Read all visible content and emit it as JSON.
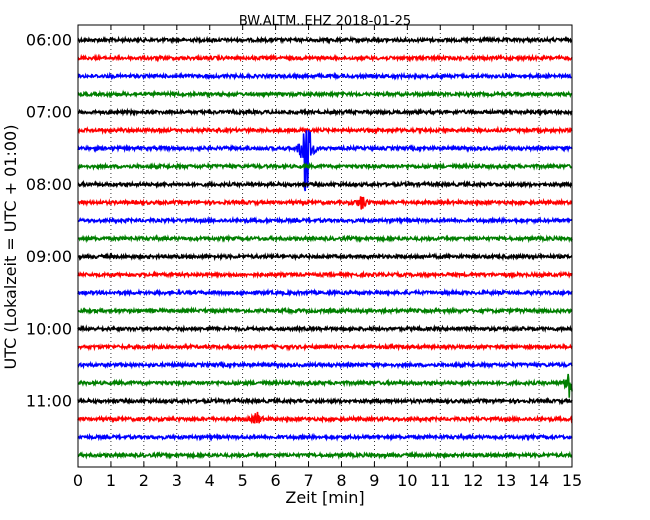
{
  "chart_data": {
    "type": "line",
    "title": "BW.ALTM..EHZ 2018-01-25",
    "xlabel": "Zeit  [min]",
    "ylabel": "UTC (Lokalzeit = UTC + 01:00)",
    "xlim": [
      0,
      15
    ],
    "x_ticks": [
      "0",
      "1",
      "2",
      "3",
      "4",
      "5",
      "6",
      "7",
      "8",
      "9",
      "10",
      "11",
      "12",
      "13",
      "14",
      "15"
    ],
    "y_tick_labels": [
      "06:00",
      "07:00",
      "08:00",
      "09:00",
      "10:00",
      "11:00"
    ],
    "grid": true,
    "series_colors": [
      "#000000",
      "#ff0000",
      "#0000ff",
      "#007f00"
    ],
    "traces": [
      {
        "start": "06:00",
        "color": "#000000"
      },
      {
        "start": "06:15",
        "color": "#ff0000"
      },
      {
        "start": "06:30",
        "color": "#0000ff"
      },
      {
        "start": "06:45",
        "color": "#007f00"
      },
      {
        "start": "07:00",
        "color": "#000000"
      },
      {
        "start": "07:15",
        "color": "#ff0000"
      },
      {
        "start": "07:30",
        "color": "#0000ff",
        "event_min": 6.9,
        "event_amp": 1.0
      },
      {
        "start": "07:45",
        "color": "#007f00"
      },
      {
        "start": "08:00",
        "color": "#000000"
      },
      {
        "start": "08:15",
        "color": "#ff0000",
        "event_min": 8.6,
        "event_amp": 0.12
      },
      {
        "start": "08:30",
        "color": "#0000ff"
      },
      {
        "start": "08:45",
        "color": "#007f00"
      },
      {
        "start": "09:00",
        "color": "#000000"
      },
      {
        "start": "09:15",
        "color": "#ff0000"
      },
      {
        "start": "09:30",
        "color": "#0000ff"
      },
      {
        "start": "09:45",
        "color": "#007f00"
      },
      {
        "start": "10:00",
        "color": "#000000"
      },
      {
        "start": "10:15",
        "color": "#ff0000"
      },
      {
        "start": "10:30",
        "color": "#0000ff"
      },
      {
        "start": "10:45",
        "color": "#007f00",
        "event_min": 14.9,
        "event_amp": 0.25
      },
      {
        "start": "11:00",
        "color": "#000000"
      },
      {
        "start": "11:15",
        "color": "#ff0000",
        "event_min": 5.4,
        "event_amp": 0.12
      },
      {
        "start": "11:30",
        "color": "#0000ff"
      },
      {
        "start": "11:45",
        "color": "#007f00"
      }
    ]
  }
}
